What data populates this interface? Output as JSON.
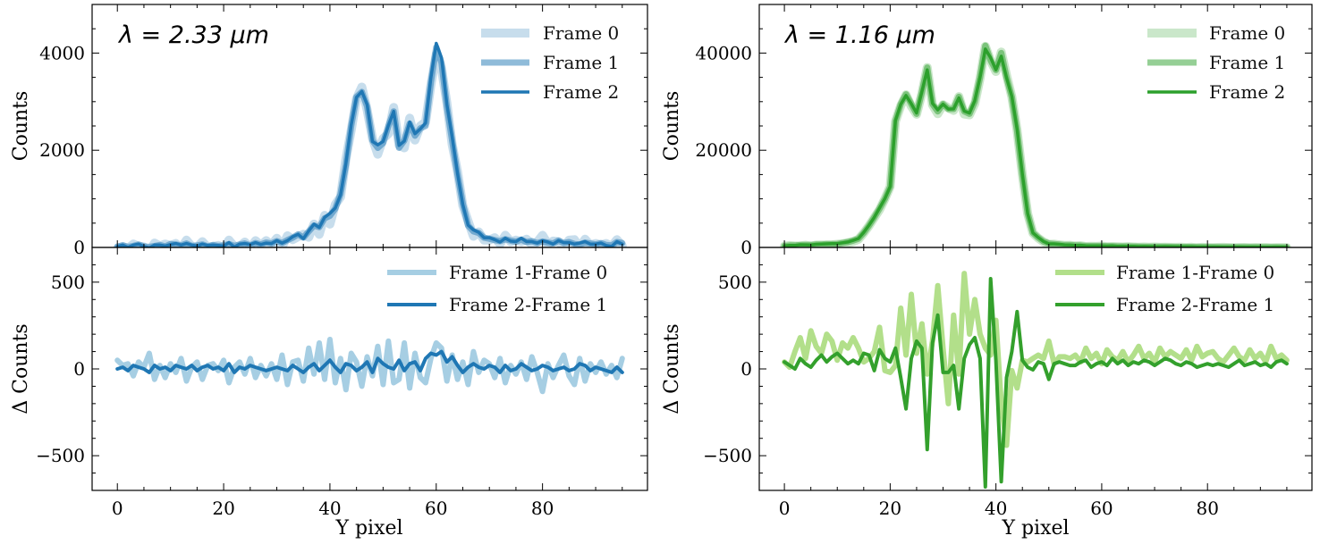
{
  "chart_data": [
    {
      "type": "line",
      "panel": "top-left",
      "annotation": "λ = 2.33 μm",
      "xlabel": "",
      "ylabel": "Counts",
      "xlim": [
        -4.75,
        99.75
      ],
      "ylim": [
        0,
        5000
      ],
      "xticks": [
        0,
        20,
        40,
        60,
        80
      ],
      "yticks": [
        0,
        2000,
        4000
      ],
      "legend_position": "top-right",
      "colors": {
        "main": "#1f77b4"
      },
      "series": [
        {
          "name": "Frame 0",
          "derived_from": "Frame 1 minus (Frame 1-Frame 0)"
        },
        {
          "name": "Frame 1",
          "values": [
            20,
            40,
            10,
            30,
            60,
            20,
            10,
            30,
            50,
            20,
            70,
            60,
            40,
            80,
            30,
            40,
            60,
            20,
            50,
            30,
            40,
            70,
            30,
            60,
            80,
            40,
            90,
            60,
            100,
            80,
            130,
            90,
            150,
            200,
            270,
            200,
            330,
            450,
            420,
            600,
            650,
            800,
            1100,
            1700,
            2500,
            3100,
            3200,
            2900,
            2200,
            2050,
            2150,
            2500,
            2800,
            2050,
            2200,
            2550,
            2300,
            2450,
            2500,
            3400,
            4120,
            3800,
            2900,
            2200,
            1500,
            900,
            450,
            330,
            300,
            200,
            180,
            150,
            130,
            170,
            140,
            120,
            160,
            110,
            130,
            90,
            120,
            100,
            80,
            140,
            90,
            110,
            70,
            60,
            100,
            80,
            60,
            90,
            50,
            40,
            110,
            90
          ]
        },
        {
          "name": "Frame 2",
          "derived_from": "Frame 1 plus (Frame 2-Frame 1)"
        }
      ]
    },
    {
      "type": "line",
      "panel": "bottom-left",
      "xlabel": "Y pixel",
      "ylabel": "Δ Counts",
      "xlim": [
        -4.75,
        99.75
      ],
      "ylim": [
        -700,
        700
      ],
      "xticks": [
        0,
        20,
        40,
        60,
        80
      ],
      "yticks": [
        -500,
        0,
        500
      ],
      "legend_position": "top-right",
      "colors": {
        "light": "#a6cee3",
        "dark": "#1f77b4"
      },
      "series": [
        {
          "name": "Frame 1-Frame 0",
          "values": [
            50,
            20,
            30,
            -40,
            40,
            10,
            90,
            -60,
            20,
            -50,
            30,
            -20,
            60,
            -70,
            10,
            40,
            -60,
            20,
            30,
            -10,
            50,
            -80,
            10,
            40,
            -30,
            60,
            -50,
            20,
            -40,
            30,
            -60,
            80,
            -90,
            40,
            50,
            -70,
            120,
            -30,
            150,
            -60,
            170,
            -80,
            60,
            -120,
            90,
            40,
            -100,
            70,
            -40,
            130,
            -90,
            160,
            -80,
            -60,
            150,
            -110,
            90,
            -50,
            -80,
            60,
            150,
            120,
            -70,
            80,
            -60,
            40,
            -90,
            100,
            -20,
            50,
            30,
            -50,
            60,
            -80,
            20,
            -30,
            40,
            -60,
            70,
            -20,
            -130,
            30,
            -50,
            20,
            80,
            -40,
            -90,
            60,
            -70,
            30,
            -20,
            40,
            -30,
            20,
            -50,
            60
          ]
        },
        {
          "name": "Frame 2-Frame 1",
          "values": [
            0,
            10,
            -10,
            20,
            10,
            0,
            -20,
            20,
            0,
            10,
            -10,
            20,
            10,
            0,
            20,
            -10,
            10,
            20,
            0,
            10,
            -10,
            30,
            -20,
            10,
            0,
            20,
            10,
            0,
            -10,
            0,
            10,
            0,
            -10,
            20,
            0,
            -20,
            10,
            30,
            -10,
            20,
            50,
            10,
            -20,
            30,
            20,
            -10,
            10,
            40,
            -20,
            60,
            30,
            10,
            0,
            50,
            -10,
            30,
            40,
            -10,
            60,
            90,
            80,
            100,
            40,
            70,
            20,
            -20,
            10,
            30,
            10,
            0,
            20,
            10,
            -20,
            20,
            -10,
            0,
            30,
            10,
            -10,
            0,
            20,
            10,
            -10,
            0,
            10,
            -10,
            0,
            30,
            20,
            -10,
            10,
            0,
            -10,
            -20,
            10,
            -20
          ]
        }
      ]
    },
    {
      "type": "line",
      "panel": "top-right",
      "annotation": "λ = 1.16 μm",
      "xlabel": "",
      "ylabel": "Counts",
      "xlim": [
        -4.75,
        99.75
      ],
      "ylim": [
        0,
        50000
      ],
      "xticks": [
        0,
        20,
        40,
        60,
        80
      ],
      "yticks": [
        0,
        20000,
        40000
      ],
      "legend_position": "top-right",
      "colors": {
        "main": "#2ca02c"
      },
      "series": [
        {
          "name": "Frame 0",
          "derived_from": "Frame 1 minus (Frame 1-Frame 0)"
        },
        {
          "name": "Frame 1",
          "values": [
            300,
            400,
            400,
            500,
            500,
            500,
            600,
            600,
            700,
            700,
            700,
            900,
            1100,
            1400,
            1800,
            3000,
            4500,
            6200,
            8000,
            10000,
            12500,
            26000,
            29500,
            31500,
            29500,
            27500,
            32000,
            37000,
            29500,
            28000,
            29500,
            28500,
            28500,
            31000,
            28000,
            27500,
            30000,
            35000,
            41500,
            38500,
            36500,
            40000,
            35000,
            31000,
            24000,
            15000,
            7000,
            3000,
            2000,
            1200,
            800,
            700,
            600,
            500,
            500,
            400,
            400,
            300,
            300,
            300,
            300,
            250,
            250,
            200,
            200,
            200,
            180,
            160,
            150,
            150,
            140,
            130,
            120,
            110,
            100,
            100,
            90,
            90,
            80,
            80,
            70,
            70,
            60,
            60,
            60,
            50,
            50,
            50,
            40,
            40,
            40,
            30,
            30,
            30,
            20,
            20
          ]
        },
        {
          "name": "Frame 2",
          "derived_from": "Frame 1 plus (Frame 2-Frame 1)"
        }
      ]
    },
    {
      "type": "line",
      "panel": "bottom-right",
      "xlabel": "Y pixel",
      "ylabel": "Δ Counts",
      "xlim": [
        -4.75,
        99.75
      ],
      "ylim": [
        -700,
        700
      ],
      "xticks": [
        0,
        20,
        40,
        60,
        80
      ],
      "yticks": [
        -500,
        0,
        500
      ],
      "legend_position": "top-right",
      "colors": {
        "light": "#b2df8a",
        "dark": "#33a02c"
      },
      "series": [
        {
          "name": "Frame 1-Frame 0",
          "values": [
            40,
            10,
            100,
            180,
            60,
            220,
            130,
            90,
            200,
            160,
            50,
            150,
            120,
            180,
            120,
            40,
            60,
            100,
            240,
            -10,
            -20,
            20,
            350,
            80,
            430,
            90,
            260,
            -30,
            160,
            480,
            120,
            -200,
            310,
            -30,
            550,
            200,
            400,
            200,
            120,
            80,
            280,
            -200,
            -440,
            -10,
            -110,
            50,
            40,
            60,
            80,
            60,
            160,
            30,
            70,
            70,
            60,
            80,
            40,
            120,
            60,
            90,
            30,
            110,
            70,
            50,
            100,
            40,
            80,
            130,
            60,
            90,
            40,
            120,
            70,
            100,
            80,
            60,
            110,
            50,
            130,
            70,
            90,
            100,
            60,
            40,
            80,
            120,
            70,
            50,
            110,
            60,
            90,
            40,
            130,
            60,
            80,
            50
          ]
        },
        {
          "name": "Frame 2-Frame 1",
          "values": [
            40,
            20,
            0,
            60,
            30,
            10,
            50,
            80,
            40,
            70,
            90,
            60,
            30,
            50,
            30,
            90,
            80,
            -10,
            110,
            60,
            40,
            120,
            -50,
            -230,
            60,
            160,
            120,
            -465,
            150,
            310,
            -20,
            -20,
            20,
            -230,
            60,
            140,
            180,
            60,
            -680,
            520,
            50,
            -650,
            -50,
            100,
            330,
            50,
            10,
            -5,
            40,
            30,
            -60,
            30,
            40,
            30,
            20,
            20,
            40,
            50,
            10,
            30,
            40,
            20,
            60,
            30,
            50,
            20,
            40,
            30,
            50,
            40,
            20,
            40,
            60,
            50,
            30,
            20,
            40,
            30,
            10,
            20,
            30,
            20,
            30,
            20,
            10,
            30,
            50,
            20,
            30,
            40,
            20,
            30,
            10,
            40,
            50,
            30
          ]
        }
      ]
    }
  ]
}
